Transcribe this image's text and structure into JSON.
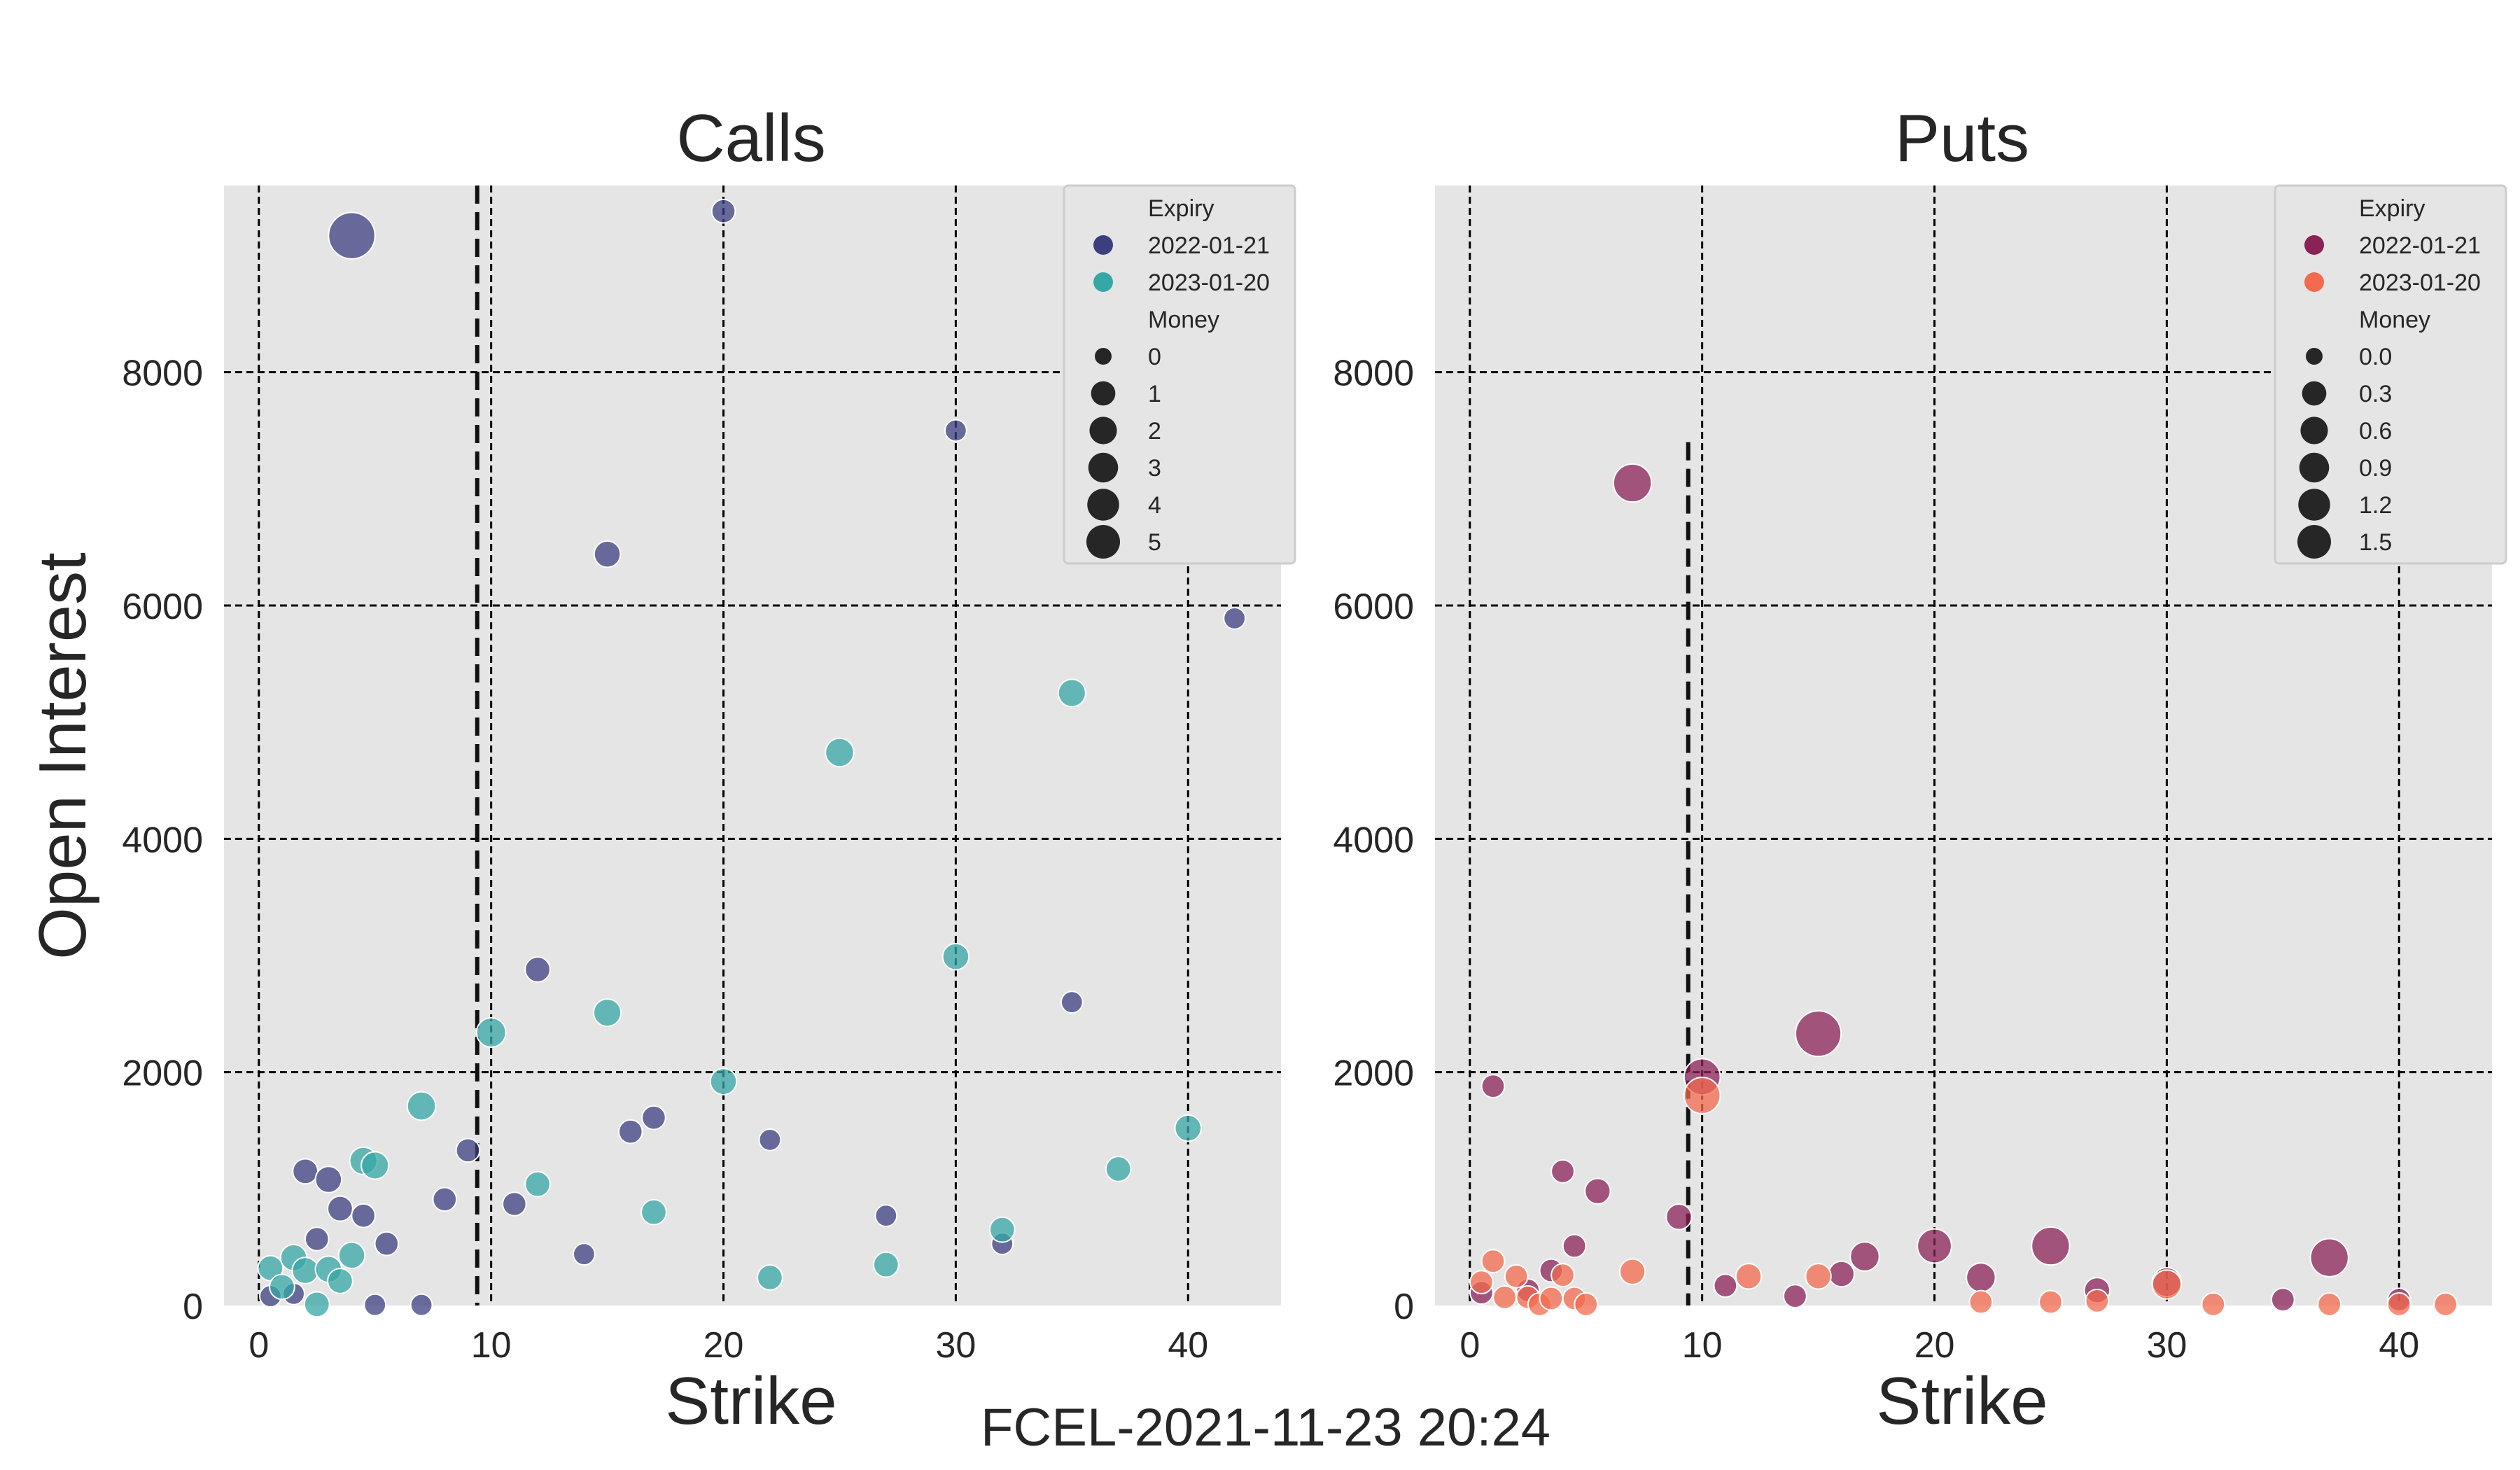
{
  "figure": {
    "suptitle": "FCEL-2021-11-23 20:24",
    "ylabel": "Open Interest"
  },
  "chart_data": [
    {
      "type": "scatter",
      "title": "Calls",
      "xlabel": "Strike",
      "ylabel": "Open Interest",
      "xlim": [
        -1.5,
        44
      ],
      "ylim": [
        0,
        9600
      ],
      "xticks": [
        0,
        10,
        20,
        30,
        40
      ],
      "yticks": [
        0,
        2000,
        4000,
        6000,
        8000
      ],
      "grid": true,
      "legend_position": "top-right",
      "vline": 9.4,
      "legend": {
        "hue_title": "Expiry",
        "size_title": "Money",
        "size_items": [
          "0",
          "1",
          "2",
          "3",
          "4",
          "5"
        ],
        "size_max": 5
      },
      "series": [
        {
          "name": "2022-01-21",
          "color": "#3b3f80",
          "points": [
            [
              0.5,
              80,
              0.1
            ],
            [
              1.5,
              100,
              0.1
            ],
            [
              2,
              1150,
              0.3
            ],
            [
              2.5,
              570,
              0.2
            ],
            [
              3,
              1080,
              0.4
            ],
            [
              3.5,
              830,
              0.3
            ],
            [
              4,
              9170,
              3.9
            ],
            [
              4.5,
              770,
              0.2
            ],
            [
              5,
              5,
              0.1
            ],
            [
              5.5,
              530,
              0.2
            ],
            [
              7,
              5,
              0.1
            ],
            [
              8,
              910,
              0.2
            ],
            [
              9,
              1330,
              0.2
            ],
            [
              11,
              870,
              0.2
            ],
            [
              12,
              2880,
              0.3
            ],
            [
              14,
              440,
              0.1
            ],
            [
              15,
              6440,
              0.4
            ],
            [
              16,
              1490,
              0.2
            ],
            [
              17,
              1610,
              0.2
            ],
            [
              20,
              9380,
              0.2
            ],
            [
              22,
              1420,
              0.1
            ],
            [
              27,
              770,
              0.1
            ],
            [
              30,
              7500,
              0.1
            ],
            [
              32,
              530,
              0.1
            ],
            [
              35,
              2600,
              0.1
            ],
            [
              42,
              5890,
              0.1
            ]
          ]
        },
        {
          "name": "2023-01-20",
          "color": "#36a7a5",
          "points": [
            [
              0.5,
              320,
              0.3
            ],
            [
              1,
              160,
              0.3
            ],
            [
              1.5,
              410,
              0.4
            ],
            [
              2,
              300,
              0.4
            ],
            [
              2.5,
              10,
              0.3
            ],
            [
              3,
              310,
              0.4
            ],
            [
              3.5,
              210,
              0.3
            ],
            [
              4,
              430,
              0.4
            ],
            [
              4.5,
              1240,
              0.5
            ],
            [
              5,
              1200,
              0.5
            ],
            [
              7,
              1710,
              0.6
            ],
            [
              10,
              2340,
              0.7
            ],
            [
              12,
              1040,
              0.3
            ],
            [
              15,
              2510,
              0.5
            ],
            [
              17,
              800,
              0.3
            ],
            [
              20,
              1920,
              0.4
            ],
            [
              22,
              240,
              0.3
            ],
            [
              25,
              4740,
              0.6
            ],
            [
              27,
              350,
              0.3
            ],
            [
              30,
              2990,
              0.4
            ],
            [
              32,
              650,
              0.3
            ],
            [
              35,
              5250,
              0.5
            ],
            [
              37,
              1170,
              0.3
            ],
            [
              40,
              1520,
              0.4
            ]
          ]
        }
      ]
    },
    {
      "type": "scatter",
      "title": "Puts",
      "xlabel": "Strike",
      "ylabel": "",
      "xlim": [
        -1.5,
        44
      ],
      "ylim": [
        0,
        9600
      ],
      "xticks": [
        0,
        10,
        20,
        30,
        40
      ],
      "yticks": [
        0,
        2000,
        4000,
        6000,
        8000
      ],
      "grid": true,
      "legend_position": "top-right",
      "vline": 9.4,
      "vline_top": 7400,
      "legend": {
        "hue_title": "Expiry",
        "size_title": "Money",
        "size_items": [
          "0.0",
          "0.3",
          "0.6",
          "0.9",
          "1.2",
          "1.5"
        ],
        "size_max": 1.5
      },
      "series": [
        {
          "name": "2022-01-21",
          "color": "#8a2157",
          "points": [
            [
              0.5,
              110,
              0.05
            ],
            [
              1,
              1880,
              0.05
            ],
            [
              2.5,
              130,
              0.05
            ],
            [
              3.5,
              300,
              0.05
            ],
            [
              4,
              1150,
              0.05
            ],
            [
              4.5,
              510,
              0.05
            ],
            [
              5.5,
              980,
              0.1
            ],
            [
              7,
              7050,
              0.6
            ],
            [
              9,
              760,
              0.1
            ],
            [
              10,
              1960,
              0.5
            ],
            [
              11,
              170,
              0.05
            ],
            [
              14,
              80,
              0.05
            ],
            [
              15,
              2330,
              1.1
            ],
            [
              16,
              270,
              0.1
            ],
            [
              17,
              420,
              0.2
            ],
            [
              20,
              510,
              0.4
            ],
            [
              22,
              240,
              0.2
            ],
            [
              25,
              510,
              0.6
            ],
            [
              27,
              130,
              0.1
            ],
            [
              30,
              200,
              0.2
            ],
            [
              35,
              50,
              0.05
            ],
            [
              37,
              410,
              0.6
            ],
            [
              40,
              50,
              0.05
            ]
          ]
        },
        {
          "name": "2023-01-20",
          "color": "#f36a4e",
          "points": [
            [
              0.5,
              200,
              0.05
            ],
            [
              1,
              380,
              0.05
            ],
            [
              1.5,
              70,
              0.05
            ],
            [
              2,
              250,
              0.05
            ],
            [
              2.5,
              70,
              0.05
            ],
            [
              3,
              10,
              0.05
            ],
            [
              3.5,
              60,
              0.05
            ],
            [
              4,
              260,
              0.05
            ],
            [
              4.5,
              60,
              0.05
            ],
            [
              5,
              10,
              0.05
            ],
            [
              7,
              290,
              0.1
            ],
            [
              10,
              1800,
              0.5
            ],
            [
              12,
              250,
              0.1
            ],
            [
              15,
              250,
              0.1
            ],
            [
              22,
              30,
              0.05
            ],
            [
              25,
              30,
              0.05
            ],
            [
              27,
              40,
              0.05
            ],
            [
              30,
              180,
              0.2
            ],
            [
              32,
              10,
              0.05
            ],
            [
              37,
              10,
              0.05
            ],
            [
              40,
              10,
              0.05
            ],
            [
              42,
              10,
              0.05
            ]
          ]
        }
      ]
    }
  ]
}
